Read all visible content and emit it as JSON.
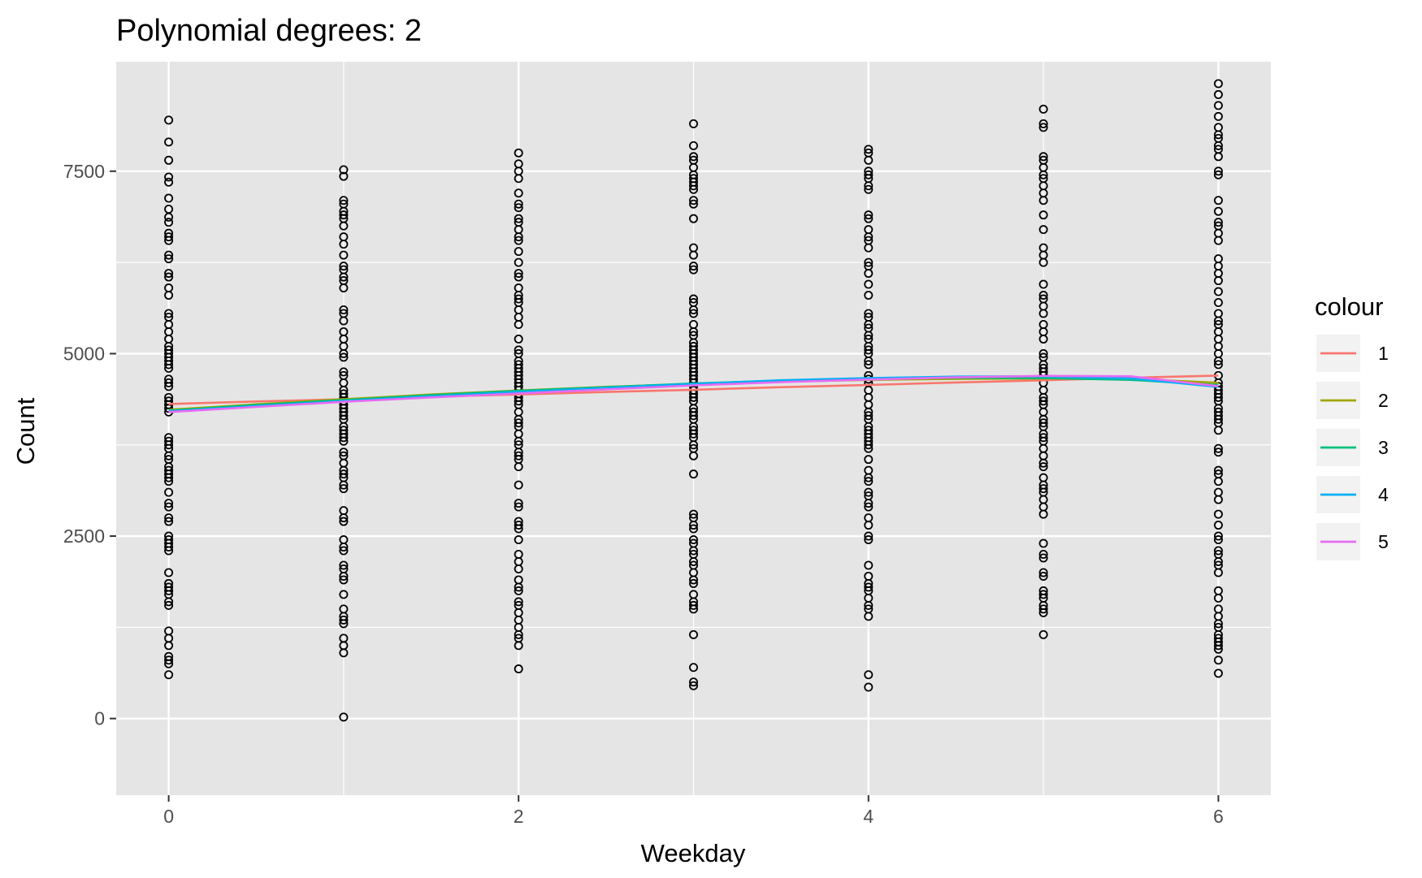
{
  "chart_data": {
    "type": "scatter",
    "title": "Polynomial degrees: 2",
    "xlabel": "Weekday",
    "ylabel": "Count",
    "xlim": [
      -0.3,
      6.3
    ],
    "ylim": [
      -1050,
      9000
    ],
    "x_ticks": [
      0,
      2,
      4,
      6
    ],
    "x_minor_ticks": [
      1,
      3,
      5
    ],
    "y_ticks": [
      0,
      2500,
      5000,
      7500
    ],
    "y_minor_ticks": [
      1250,
      3750,
      6250
    ],
    "x_tick_labels": [
      "0",
      "2",
      "4",
      "6"
    ],
    "y_tick_labels": [
      "0",
      "2500",
      "5000",
      "7500"
    ],
    "grid": true,
    "panel_background": "#e5e5e5",
    "point_color": "#000000",
    "points": [
      {
        "x": 0,
        "y": [
          8200,
          7900,
          7650,
          7420,
          7350,
          7130,
          6980,
          6870,
          6800,
          6650,
          6600,
          6550,
          6350,
          6300,
          6100,
          6050,
          5900,
          5800,
          5550,
          5500,
          5400,
          5300,
          5200,
          5100,
          5050,
          5000,
          4950,
          4900,
          4850,
          4800,
          4650,
          4600,
          4550,
          4400,
          4350,
          4300,
          4250,
          4200,
          3850,
          3800,
          3750,
          3700,
          3600,
          3550,
          3450,
          3400,
          3350,
          3300,
          3250,
          3100,
          2950,
          2900,
          2750,
          2700,
          2500,
          2450,
          2400,
          2350,
          2300,
          2000,
          1850,
          1800,
          1750,
          1700,
          1600,
          1550,
          1200,
          1100,
          1000,
          850,
          800,
          750,
          600
        ]
      },
      {
        "x": 1,
        "y": [
          7520,
          7430,
          7100,
          7050,
          6950,
          6900,
          6850,
          6750,
          6600,
          6500,
          6350,
          6200,
          6150,
          6050,
          6000,
          5900,
          5600,
          5550,
          5450,
          5300,
          5200,
          5100,
          5000,
          4950,
          4750,
          4700,
          4600,
          4500,
          4450,
          4400,
          4350,
          4300,
          4250,
          4200,
          4150,
          4100,
          4000,
          3950,
          3900,
          3850,
          3800,
          3650,
          3600,
          3500,
          3400,
          3350,
          3300,
          3200,
          3150,
          2850,
          2750,
          2700,
          2450,
          2350,
          2300,
          2100,
          2050,
          1950,
          1900,
          1700,
          1500,
          1400,
          1350,
          1300,
          1100,
          1000,
          900,
          20
        ]
      },
      {
        "x": 2,
        "y": [
          7750,
          7600,
          7500,
          7400,
          7200,
          7050,
          7000,
          6850,
          6800,
          6700,
          6600,
          6550,
          6400,
          6250,
          6100,
          6050,
          5900,
          5800,
          5750,
          5700,
          5600,
          5500,
          5400,
          5200,
          5050,
          5000,
          4900,
          4850,
          4800,
          4750,
          4700,
          4650,
          4600,
          4550,
          4500,
          4450,
          4400,
          4350,
          4300,
          4200,
          4100,
          4050,
          4000,
          3900,
          3800,
          3750,
          3650,
          3600,
          3550,
          3450,
          3200,
          2950,
          2900,
          2700,
          2650,
          2600,
          2450,
          2250,
          2150,
          2050,
          1900,
          1800,
          1750,
          1600,
          1550,
          1450,
          1350,
          1250,
          1150,
          1100,
          1000,
          680
        ]
      },
      {
        "x": 3,
        "y": [
          8150,
          7850,
          7700,
          7650,
          7550,
          7450,
          7400,
          7350,
          7300,
          7250,
          7100,
          7050,
          6850,
          6450,
          6350,
          6200,
          6150,
          5750,
          5700,
          5600,
          5550,
          5400,
          5300,
          5250,
          5150,
          5100,
          5050,
          5000,
          4950,
          4900,
          4850,
          4800,
          4750,
          4700,
          4650,
          4600,
          4550,
          4500,
          4450,
          4400,
          4350,
          4250,
          4200,
          4150,
          4100,
          4000,
          3950,
          3900,
          3850,
          3750,
          3700,
          3600,
          3350,
          2800,
          2750,
          2650,
          2600,
          2450,
          2400,
          2300,
          2250,
          2150,
          2100,
          2000,
          1900,
          1850,
          1700,
          1600,
          1550,
          1500,
          1150,
          700,
          500,
          450
        ]
      },
      {
        "x": 4,
        "y": [
          7800,
          7750,
          7650,
          7500,
          7450,
          7400,
          7300,
          7250,
          6900,
          6850,
          6700,
          6600,
          6550,
          6450,
          6250,
          6200,
          6100,
          5950,
          5800,
          5550,
          5500,
          5400,
          5350,
          5250,
          5200,
          5100,
          5050,
          5000,
          4900,
          4850,
          4700,
          4650,
          4600,
          4500,
          4400,
          4300,
          4200,
          4150,
          4100,
          4000,
          3950,
          3900,
          3850,
          3800,
          3750,
          3700,
          3550,
          3400,
          3300,
          3250,
          3100,
          3050,
          2950,
          2900,
          2750,
          2650,
          2500,
          2450,
          2100,
          1950,
          1850,
          1800,
          1750,
          1650,
          1550,
          1500,
          1400,
          600,
          430
        ]
      },
      {
        "x": 5,
        "y": [
          8350,
          8150,
          8100,
          7700,
          7650,
          7550,
          7450,
          7400,
          7300,
          7200,
          7100,
          6900,
          6700,
          6450,
          6350,
          6250,
          5950,
          5800,
          5750,
          5650,
          5550,
          5400,
          5300,
          5200,
          5000,
          4950,
          4850,
          4800,
          4750,
          4700,
          4600,
          4500,
          4400,
          4350,
          4300,
          4200,
          4100,
          4050,
          4000,
          3900,
          3850,
          3800,
          3700,
          3600,
          3500,
          3450,
          3300,
          3200,
          3150,
          3100,
          3000,
          2900,
          2800,
          2400,
          2250,
          2200,
          2000,
          1950,
          1750,
          1700,
          1650,
          1550,
          1500,
          1450,
          1150
        ]
      },
      {
        "x": 6,
        "y": [
          8700,
          8550,
          8400,
          8250,
          8100,
          8000,
          7950,
          7850,
          7800,
          7700,
          7500,
          7450,
          7100,
          6950,
          6800,
          6750,
          6650,
          6550,
          6300,
          6200,
          6100,
          6000,
          5850,
          5700,
          5550,
          5450,
          5400,
          5300,
          5200,
          5100,
          5000,
          4900,
          4850,
          4700,
          4600,
          4550,
          4500,
          4450,
          4400,
          4350,
          4250,
          4200,
          4150,
          4100,
          4050,
          3950,
          3700,
          3650,
          3400,
          3350,
          3250,
          3100,
          3000,
          2800,
          2650,
          2500,
          2450,
          2300,
          2250,
          2150,
          2100,
          2000,
          1750,
          1650,
          1500,
          1400,
          1300,
          1250,
          1150,
          1100,
          1050,
          1000,
          950,
          800,
          620
        ]
      }
    ],
    "series_x": [
      0,
      0.5,
      1,
      1.5,
      2,
      2.5,
      3,
      3.5,
      4,
      4.5,
      5,
      5.5,
      6
    ],
    "series": [
      {
        "name": "1",
        "color": "#f8766d",
        "values": [
          4310,
          4345,
          4375,
          4410,
          4440,
          4475,
          4505,
          4540,
          4570,
          4605,
          4635,
          4670,
          4700
        ]
      },
      {
        "name": "2",
        "color": "#a3a500",
        "values": [
          4230,
          4305,
          4375,
          4440,
          4495,
          4545,
          4585,
          4615,
          4640,
          4655,
          4660,
          4655,
          4600
        ]
      },
      {
        "name": "3",
        "color": "#00bf7d",
        "values": [
          4220,
          4295,
          4365,
          4430,
          4490,
          4540,
          4590,
          4630,
          4655,
          4670,
          4665,
          4640,
          4570
        ]
      },
      {
        "name": "4",
        "color": "#00b0f6",
        "values": [
          4210,
          4280,
          4350,
          4415,
          4475,
          4530,
          4585,
          4635,
          4665,
          4685,
          4690,
          4660,
          4545
        ]
      },
      {
        "name": "5",
        "color": "#e76bf3",
        "values": [
          4200,
          4270,
          4340,
          4400,
          4455,
          4510,
          4565,
          4610,
          4645,
          4675,
          4695,
          4690,
          4555
        ]
      }
    ],
    "legend_title": "colour",
    "legend_position": "right"
  }
}
